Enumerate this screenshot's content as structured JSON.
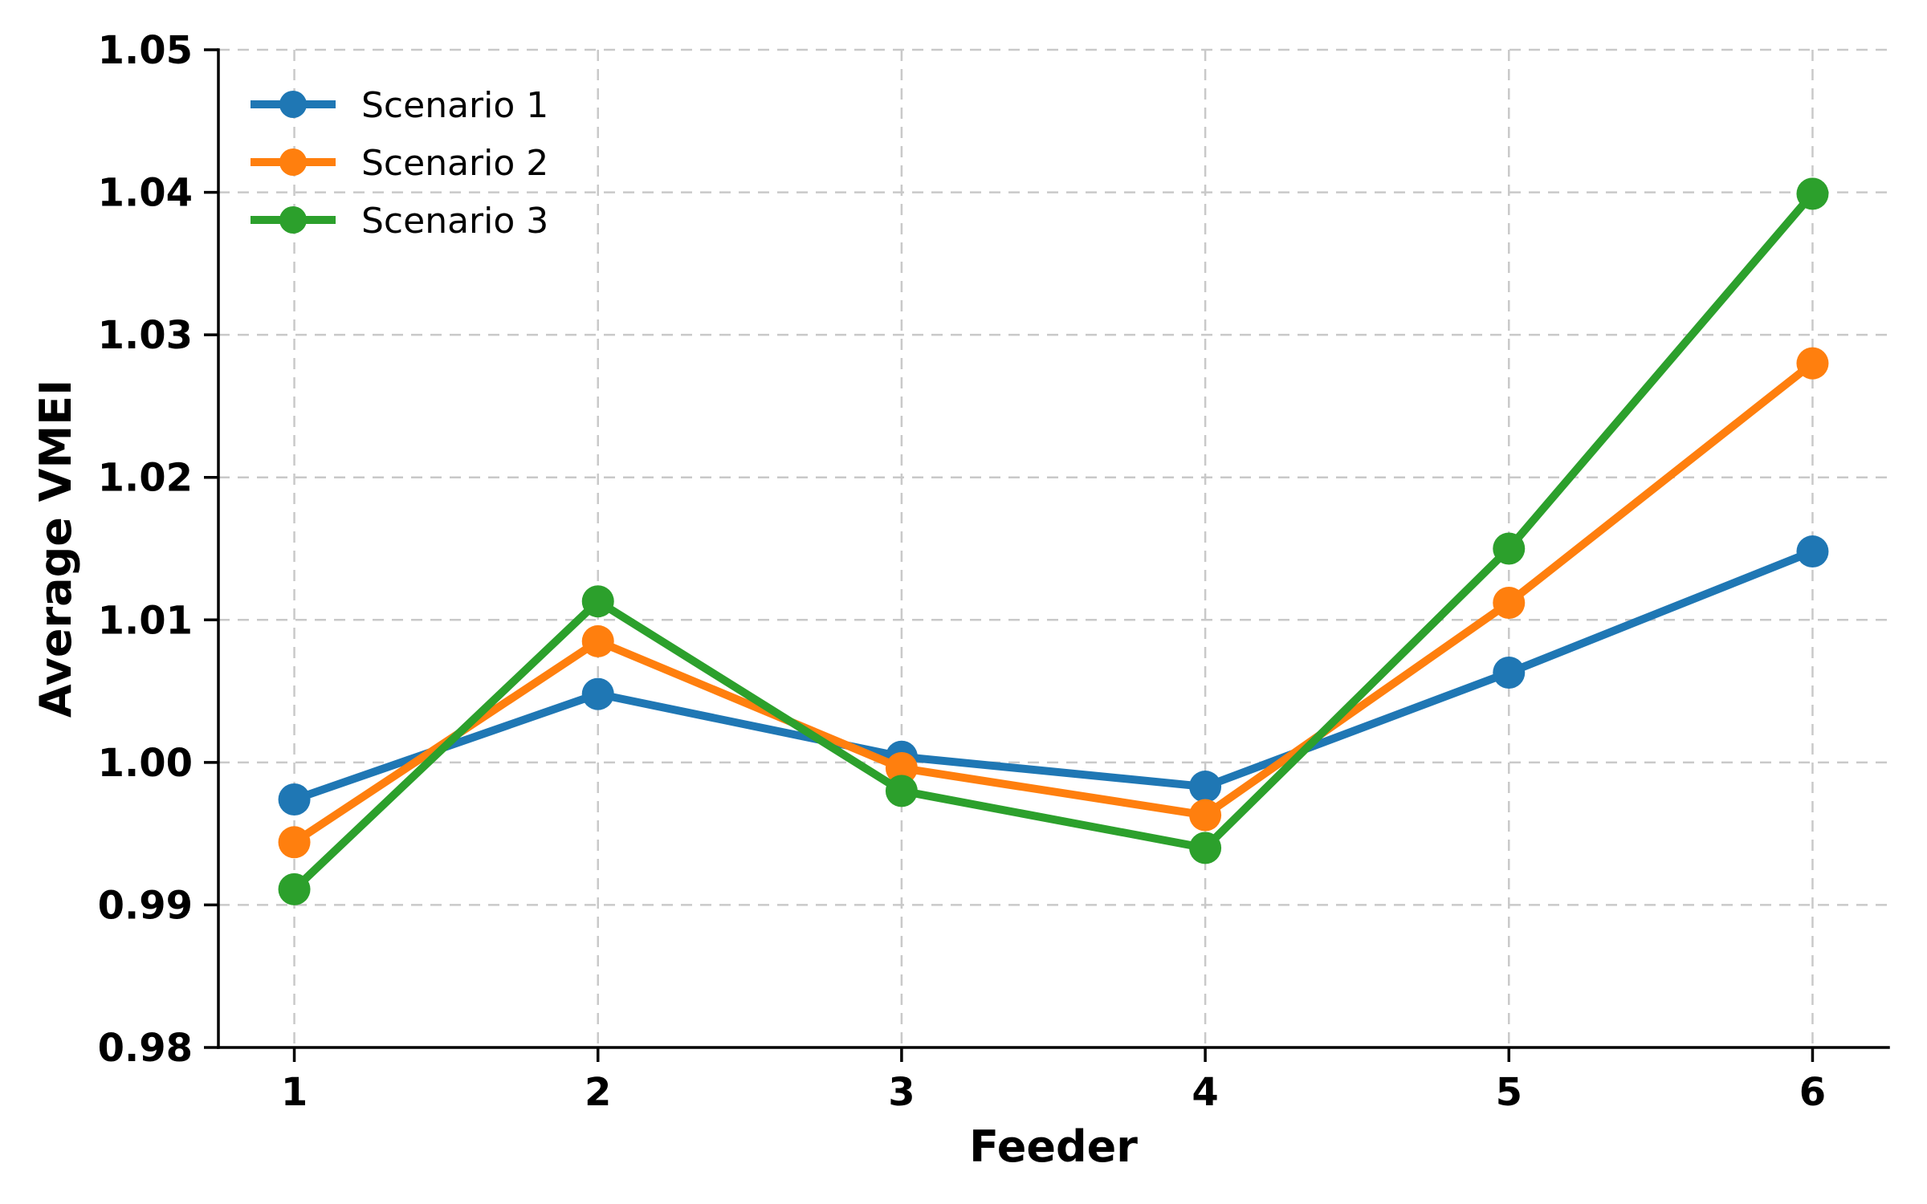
{
  "figure": {
    "background_color": "#ffffff",
    "title": ""
  },
  "chart_data": {
    "type": "line",
    "title": "",
    "xlabel": "Feeder",
    "ylabel": "Average VMEI",
    "x": [
      1,
      2,
      3,
      4,
      5,
      6
    ],
    "xtick_labels": [
      "1",
      "2",
      "3",
      "4",
      "5",
      "6"
    ],
    "yticks": [
      0.98,
      0.99,
      1.0,
      1.01,
      1.02,
      1.03,
      1.04,
      1.05
    ],
    "ytick_labels": [
      "0.98",
      "0.99",
      "1.00",
      "1.01",
      "1.02",
      "1.03",
      "1.04",
      "1.05"
    ],
    "xlim": [
      0.75,
      6.25
    ],
    "ylim": [
      0.98,
      1.05
    ],
    "grid": true,
    "grid_style": "dashed",
    "legend_position": "upper-left",
    "legend_frame": false,
    "series": [
      {
        "name": "Scenario 1",
        "color": "#1f77b4",
        "marker": "circle",
        "values": [
          0.9974,
          1.0048,
          1.0004,
          0.9983,
          1.0063,
          1.0148
        ]
      },
      {
        "name": "Scenario 2",
        "color": "#ff7f0e",
        "marker": "circle",
        "values": [
          0.9944,
          1.0085,
          0.9996,
          0.9963,
          1.0112,
          1.028
        ]
      },
      {
        "name": "Scenario 3",
        "color": "#2ca02c",
        "marker": "circle",
        "values": [
          0.9911,
          1.0113,
          0.998,
          0.994,
          1.015,
          1.0399
        ]
      }
    ],
    "style": {
      "grid_color": "#c9c9c9",
      "spine_color": "#000000",
      "text_color": "#000000"
    }
  }
}
